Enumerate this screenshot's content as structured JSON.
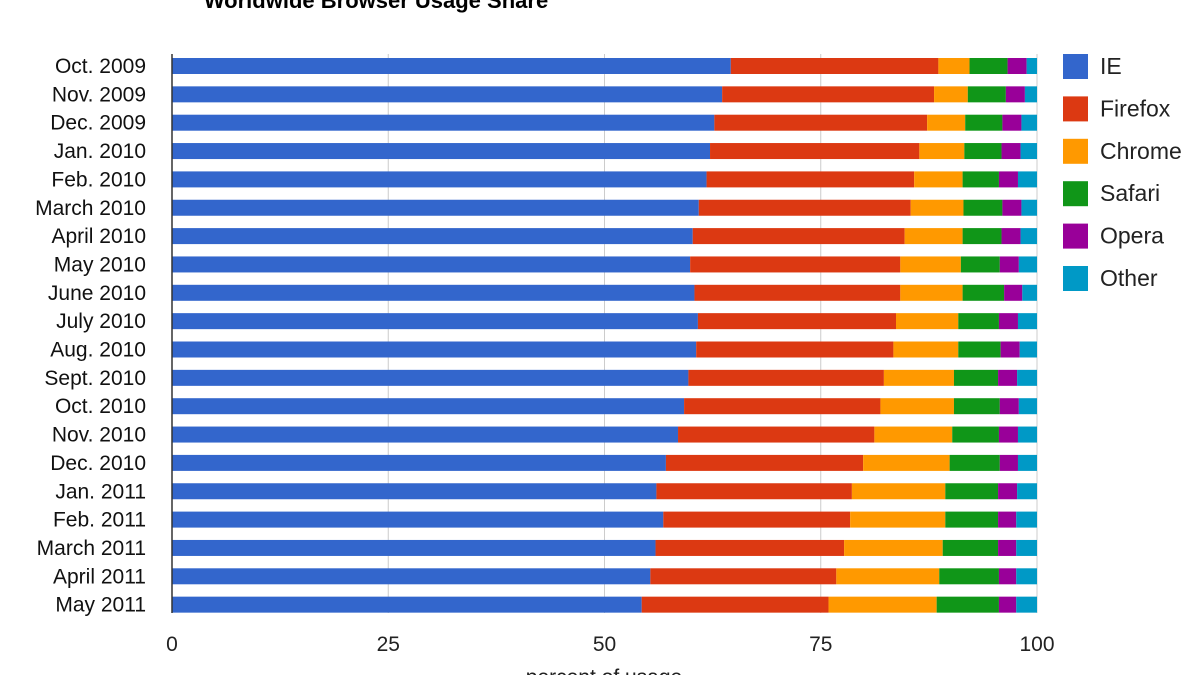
{
  "chart_data": {
    "type": "bar",
    "orientation": "horizontal",
    "stacked": true,
    "title": "Worldwide Browser Usage Share",
    "xlabel": "percent of usage",
    "ylabel": "",
    "xlim": [
      0,
      100
    ],
    "xticks": [
      "0",
      "25",
      "50",
      "75",
      "100"
    ],
    "grid": true,
    "legend_position": "right",
    "categories": [
      "Oct. 2009",
      "Nov. 2009",
      "Dec. 2009",
      "Jan. 2010",
      "Feb. 2010",
      "March 2010",
      "April 2010",
      "May 2010",
      "June 2010",
      "July 2010",
      "Aug. 2010",
      "Sept. 2010",
      "Oct. 2010",
      "Nov. 2010",
      "Dec. 2010",
      "Jan. 2011",
      "Feb. 2011",
      "March 2011",
      "April 2011",
      "May 2011"
    ],
    "series": [
      {
        "name": "IE",
        "color": "#3366cc",
        "values": [
          64.6,
          63.6,
          62.7,
          62.2,
          61.8,
          60.9,
          60.2,
          59.9,
          60.4,
          60.8,
          60.6,
          59.7,
          59.2,
          58.5,
          57.1,
          56.0,
          56.8,
          55.9,
          55.3,
          54.3
        ]
      },
      {
        "name": "Firefox",
        "color": "#dc3912",
        "values": [
          24.0,
          24.5,
          24.6,
          24.2,
          24.0,
          24.5,
          24.5,
          24.3,
          23.8,
          22.9,
          22.8,
          22.6,
          22.7,
          22.7,
          22.8,
          22.6,
          21.6,
          21.8,
          21.5,
          21.6
        ]
      },
      {
        "name": "Chrome",
        "color": "#ff9900",
        "values": [
          3.6,
          3.9,
          4.4,
          5.2,
          5.6,
          6.1,
          6.7,
          7.0,
          7.2,
          7.2,
          7.5,
          8.1,
          8.5,
          9.0,
          10.0,
          10.8,
          11.0,
          11.4,
          11.9,
          12.5
        ]
      },
      {
        "name": "Safari",
        "color": "#109618",
        "values": [
          4.4,
          4.4,
          4.3,
          4.3,
          4.2,
          4.5,
          4.5,
          4.5,
          4.8,
          4.7,
          4.9,
          5.1,
          5.3,
          5.4,
          5.8,
          6.1,
          6.1,
          6.4,
          6.9,
          7.2
        ]
      },
      {
        "name": "Opera",
        "color": "#990099",
        "values": [
          2.2,
          2.2,
          2.2,
          2.2,
          2.2,
          2.2,
          2.2,
          2.2,
          2.1,
          2.2,
          2.2,
          2.2,
          2.2,
          2.2,
          2.1,
          2.2,
          2.1,
          2.1,
          2.0,
          2.0
        ]
      },
      {
        "name": "Other",
        "color": "#0099c6",
        "values": [
          1.2,
          1.4,
          1.8,
          1.9,
          2.2,
          1.8,
          1.9,
          2.1,
          1.7,
          2.2,
          2.0,
          2.3,
          2.1,
          2.2,
          2.2,
          2.3,
          2.4,
          2.4,
          2.4,
          2.4
        ]
      }
    ]
  }
}
